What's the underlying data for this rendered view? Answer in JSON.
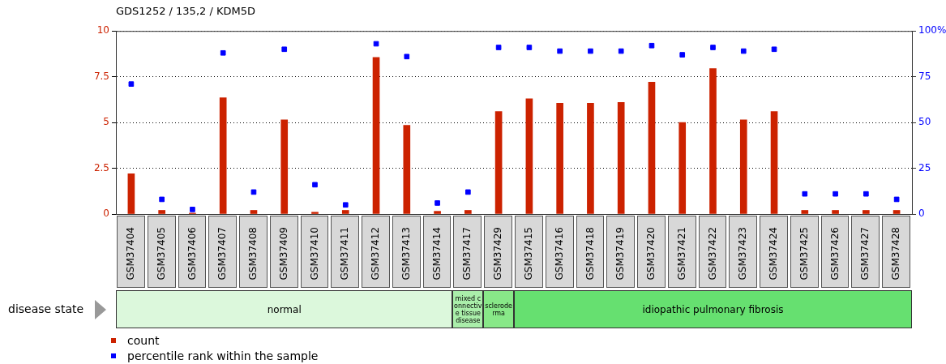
{
  "chart_data": {
    "type": "bar",
    "title": "GDS1252 / 135,2 / KDM5D",
    "categories": [
      "GSM37404",
      "GSM37405",
      "GSM37406",
      "GSM37407",
      "GSM37408",
      "GSM37409",
      "GSM37410",
      "GSM37411",
      "GSM37412",
      "GSM37413",
      "GSM37414",
      "GSM37417",
      "GSM37429",
      "GSM37415",
      "GSM37416",
      "GSM37418",
      "GSM37419",
      "GSM37420",
      "GSM37421",
      "GSM37422",
      "GSM37423",
      "GSM37424",
      "GSM37425",
      "GSM37426",
      "GSM37427",
      "GSM37428"
    ],
    "series": [
      {
        "name": "count",
        "color": "#cc2200",
        "values": [
          2.2,
          0.2,
          0.05,
          6.35,
          0.2,
          5.15,
          0.1,
          0.2,
          8.55,
          4.85,
          0.15,
          0.2,
          5.6,
          6.3,
          6.05,
          6.05,
          6.1,
          7.2,
          5.0,
          7.95,
          5.15,
          5.6,
          0.2,
          0.2,
          0.2,
          0.2
        ]
      },
      {
        "name": "percentile rank within the sample",
        "type": "scatter",
        "axis": "y2",
        "color": "#0000ff",
        "values": [
          71,
          8,
          2.5,
          88,
          12,
          90,
          16,
          5,
          93,
          86,
          6,
          12,
          91,
          91,
          89,
          89,
          89,
          92,
          87,
          91,
          89,
          90,
          11,
          11,
          11,
          8
        ]
      }
    ],
    "ylim": [
      0,
      10
    ],
    "yticks": [
      0,
      2.5,
      5,
      7.5,
      10
    ],
    "y2lim": [
      0,
      100
    ],
    "y2ticks": [
      0,
      25,
      50,
      75,
      {
        "value": 100,
        "label": "100%"
      }
    ],
    "grid": "y",
    "marker": "square",
    "legend": "bottom",
    "annotations": [
      "disease state",
      "normal",
      "mixed connective tissue disease",
      "scleroderma",
      "idiopathic pulmonary fibrosis"
    ]
  }
}
